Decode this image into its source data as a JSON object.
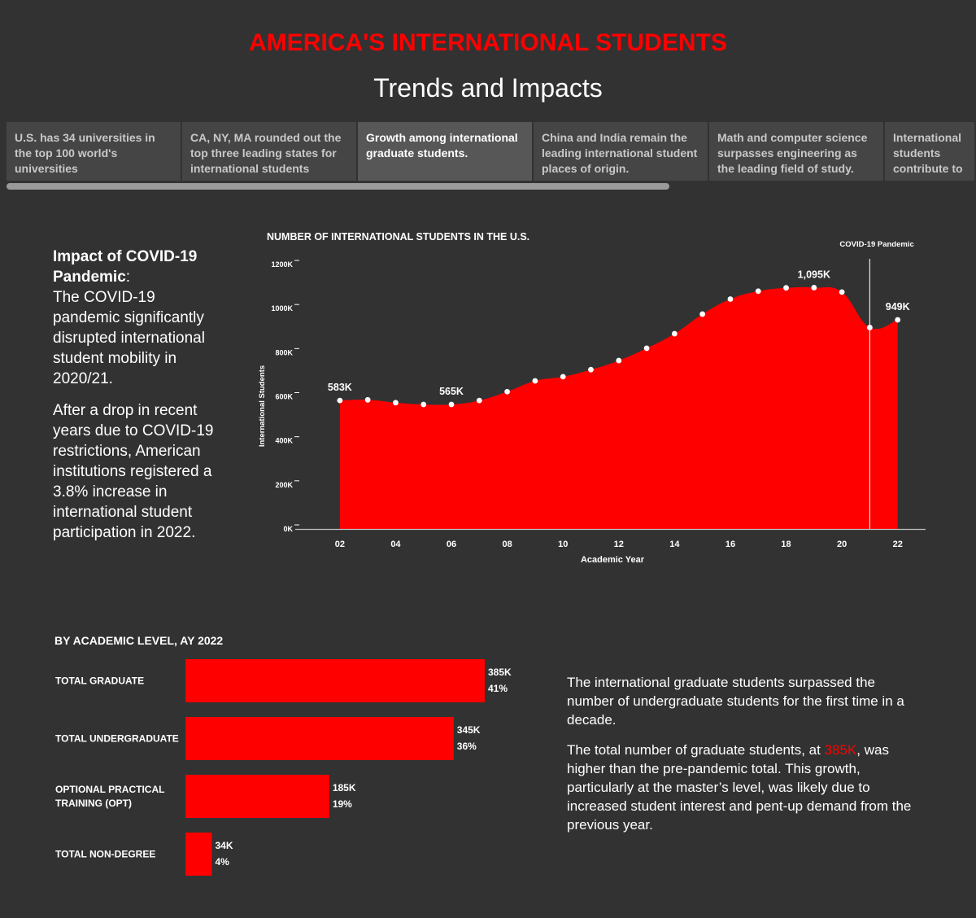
{
  "header": {
    "title": "AMERICA'S INTERNATIONAL STUDENTS",
    "subtitle": "Trends and Impacts"
  },
  "tabs": [
    {
      "label": "U.S. has 34 universities in the top 100 world's universities",
      "active": false
    },
    {
      "label": "CA, NY, MA rounded out the top three leading states for international students",
      "active": false
    },
    {
      "label": "Growth among international graduate students.",
      "active": true
    },
    {
      "label": "China and India remain the leading international student places of origin.",
      "active": false
    },
    {
      "label": "Math and computer science surpasses engineering as the leading field of study.",
      "active": false
    },
    {
      "label": "International students contribute to ..",
      "active": false
    }
  ],
  "left_panel": {
    "heading": "Impact of COVID-19 Pandemic",
    "heading_suffix": ":",
    "para1": "The COVID-19 pandemic significantly disrupted international student mobility in 2020/21.",
    "para2": "After a drop in recent years due to COVID-19 restrictions, American institutions registered a 3.8% increase in international student participation in 2022."
  },
  "right_panel": {
    "para1": "The international graduate students surpassed the number of undergraduate students for the first time in a decade.",
    "para2_before": "The total number of graduate students, at ",
    "para2_highlight": "385K",
    "para2_after": ", was higher than the pre-pandemic total. This growth, particularly at the master’s level, was likely due to increased student interest and pent-up demand from the previous year."
  },
  "colors": {
    "accent": "#ff0000",
    "background": "#323232",
    "tab_bg": "#454545",
    "tab_active_bg": "#575757"
  },
  "chart_data": [
    {
      "type": "area",
      "title": "NUMBER OF INTERNATIONAL STUDENTS IN THE U.S.",
      "xlabel": "Academic Year",
      "ylabel": "International Students",
      "x": [
        2002,
        2003,
        2004,
        2005,
        2006,
        2007,
        2008,
        2009,
        2010,
        2011,
        2012,
        2013,
        2014,
        2015,
        2016,
        2017,
        2018,
        2019,
        2020,
        2021,
        2022
      ],
      "values": [
        583,
        586,
        573,
        565,
        565,
        583,
        623,
        672,
        691,
        723,
        764,
        820,
        886,
        975,
        1043,
        1079,
        1094,
        1095,
        1075,
        914,
        949
      ],
      "xtick_labels": [
        "02",
        "04",
        "06",
        "08",
        "10",
        "12",
        "14",
        "16",
        "18",
        "20",
        "22"
      ],
      "xticks": [
        2002,
        2004,
        2006,
        2008,
        2010,
        2012,
        2014,
        2016,
        2018,
        2020,
        2022
      ],
      "yticks": [
        0,
        200,
        400,
        600,
        800,
        1000,
        1200
      ],
      "ytick_labels": [
        "0K",
        "200K",
        "400K",
        "600K",
        "800K",
        "1000K",
        "1200K"
      ],
      "ylim": [
        0,
        1200
      ],
      "xlim": [
        2000.4,
        2023
      ],
      "data_labels": [
        {
          "x": 2002,
          "label": "583K"
        },
        {
          "x": 2006,
          "label": "565K"
        },
        {
          "x": 2019,
          "label": "1,095K"
        },
        {
          "x": 2022,
          "label": "949K"
        }
      ],
      "reference_line": {
        "x": 2021,
        "label": "COVID-19 Pandemic"
      }
    },
    {
      "type": "bar",
      "title": "BY ACADEMIC LEVEL, AY 2022",
      "orientation": "horizontal",
      "categories": [
        "TOTAL GRADUATE",
        "TOTAL UNDERGRADUATE",
        "OPTIONAL PRACTICAL TRAINING (OPT)",
        "TOTAL NON-DEGREE"
      ],
      "category_lines": [
        [
          "TOTAL GRADUATE"
        ],
        [
          "TOTAL UNDERGRADUATE"
        ],
        [
          "OPTIONAL PRACTICAL",
          "TRAINING (OPT)"
        ],
        [
          "TOTAL NON-DEGREE"
        ]
      ],
      "values": [
        385,
        345,
        185,
        34
      ],
      "value_labels": [
        "385K",
        "345K",
        "185K",
        "34K"
      ],
      "percent_labels": [
        "41%",
        "36%",
        "19%",
        "4%"
      ],
      "xlim": [
        0,
        385
      ]
    }
  ]
}
